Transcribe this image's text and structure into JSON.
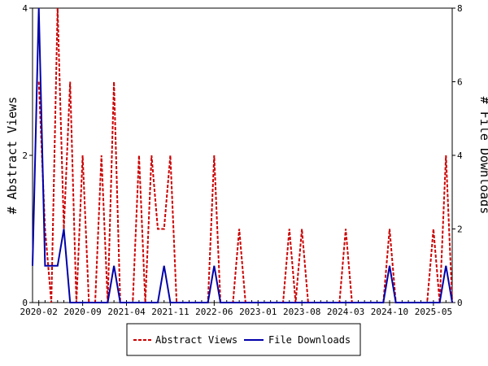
{
  "chart_data": {
    "type": "line",
    "x_ticks": [
      "2020-02",
      "2020-09",
      "2021-04",
      "2021-11",
      "2022-06",
      "2023-01",
      "2023-08",
      "2024-03",
      "2024-10",
      "2025-05"
    ],
    "ylabel_left": "# Abstract Views",
    "ylabel_right": "# File Downloads",
    "ylim_left": [
      0,
      4
    ],
    "ylim_right": [
      0,
      8
    ],
    "yticks_left": [
      "0",
      "2",
      "4"
    ],
    "yticks_right": [
      "0",
      "2",
      "4",
      "6",
      "8"
    ],
    "series": [
      {
        "name": "Abstract Views",
        "axis": "left",
        "color": "#cc0000",
        "style": "dashed",
        "points": [
          [
            "2020-02",
            3
          ],
          [
            "2020-03",
            1
          ],
          [
            "2020-04",
            0
          ],
          [
            "2020-05",
            4
          ],
          [
            "2020-06",
            1
          ],
          [
            "2020-07",
            3
          ],
          [
            "2020-08",
            0
          ],
          [
            "2020-09",
            2
          ],
          [
            "2020-10",
            0
          ],
          [
            "2020-11",
            0
          ],
          [
            "2020-12",
            2
          ],
          [
            "2021-01",
            0
          ],
          [
            "2021-02",
            3
          ],
          [
            "2021-03",
            0
          ],
          [
            "2021-04",
            0
          ],
          [
            "2021-05",
            0
          ],
          [
            "2021-06",
            2
          ],
          [
            "2021-07",
            0
          ],
          [
            "2021-08",
            2
          ],
          [
            "2021-09",
            1
          ],
          [
            "2021-10",
            1
          ],
          [
            "2021-11",
            2
          ],
          [
            "2021-12",
            0
          ],
          [
            "2022-01",
            0
          ],
          [
            "2022-02",
            0
          ],
          [
            "2022-03",
            0
          ],
          [
            "2022-04",
            0
          ],
          [
            "2022-05",
            0
          ],
          [
            "2022-06",
            2
          ],
          [
            "2022-07",
            0
          ],
          [
            "2022-08",
            0
          ],
          [
            "2022-09",
            0
          ],
          [
            "2022-10",
            1
          ],
          [
            "2022-11",
            0
          ],
          [
            "2022-12",
            0
          ],
          [
            "2023-01",
            0
          ],
          [
            "2023-02",
            0
          ],
          [
            "2023-03",
            0
          ],
          [
            "2023-04",
            0
          ],
          [
            "2023-05",
            0
          ],
          [
            "2023-06",
            1
          ],
          [
            "2023-07",
            0
          ],
          [
            "2023-08",
            1
          ],
          [
            "2023-09",
            0
          ],
          [
            "2023-10",
            0
          ],
          [
            "2023-11",
            0
          ],
          [
            "2023-12",
            0
          ],
          [
            "2024-01",
            0
          ],
          [
            "2024-02",
            0
          ],
          [
            "2024-03",
            1
          ],
          [
            "2024-04",
            0
          ],
          [
            "2024-05",
            0
          ],
          [
            "2024-06",
            0
          ],
          [
            "2024-07",
            0
          ],
          [
            "2024-08",
            0
          ],
          [
            "2024-09",
            0
          ],
          [
            "2024-10",
            1
          ],
          [
            "2024-11",
            0
          ],
          [
            "2024-12",
            0
          ],
          [
            "2025-01",
            0
          ],
          [
            "2025-02",
            0
          ],
          [
            "2025-03",
            0
          ],
          [
            "2025-04",
            0
          ],
          [
            "2025-05",
            1
          ],
          [
            "2025-06",
            0
          ],
          [
            "2025-07",
            2
          ],
          [
            "2025-08",
            0
          ]
        ]
      },
      {
        "name": "File Downloads",
        "axis": "right",
        "color": "#0000aa",
        "style": "solid",
        "points": [
          [
            "2020-01",
            1
          ],
          [
            "2020-02",
            8
          ],
          [
            "2020-03",
            1
          ],
          [
            "2020-04",
            1
          ],
          [
            "2020-05",
            1
          ],
          [
            "2020-06",
            2
          ],
          [
            "2020-07",
            0
          ],
          [
            "2020-08",
            0
          ],
          [
            "2020-09",
            0
          ],
          [
            "2020-10",
            0
          ],
          [
            "2020-11",
            0
          ],
          [
            "2020-12",
            0
          ],
          [
            "2021-01",
            0
          ],
          [
            "2021-02",
            1
          ],
          [
            "2021-03",
            0
          ],
          [
            "2021-04",
            0
          ],
          [
            "2021-05",
            0
          ],
          [
            "2021-06",
            0
          ],
          [
            "2021-07",
            0
          ],
          [
            "2021-08",
            0
          ],
          [
            "2021-09",
            0
          ],
          [
            "2021-10",
            1
          ],
          [
            "2021-11",
            0
          ],
          [
            "2021-12",
            0
          ],
          [
            "2022-01",
            0
          ],
          [
            "2022-02",
            0
          ],
          [
            "2022-03",
            0
          ],
          [
            "2022-04",
            0
          ],
          [
            "2022-05",
            0
          ],
          [
            "2022-06",
            1
          ],
          [
            "2022-07",
            0
          ],
          [
            "2022-08",
            0
          ],
          [
            "2022-09",
            0
          ],
          [
            "2022-10",
            0
          ],
          [
            "2022-11",
            0
          ],
          [
            "2022-12",
            0
          ],
          [
            "2023-01",
            0
          ],
          [
            "2023-02",
            0
          ],
          [
            "2023-03",
            0
          ],
          [
            "2023-04",
            0
          ],
          [
            "2023-05",
            0
          ],
          [
            "2023-06",
            0
          ],
          [
            "2023-07",
            0
          ],
          [
            "2023-08",
            0
          ],
          [
            "2023-09",
            0
          ],
          [
            "2023-10",
            0
          ],
          [
            "2023-11",
            0
          ],
          [
            "2023-12",
            0
          ],
          [
            "2024-01",
            0
          ],
          [
            "2024-02",
            0
          ],
          [
            "2024-03",
            0
          ],
          [
            "2024-04",
            0
          ],
          [
            "2024-05",
            0
          ],
          [
            "2024-06",
            0
          ],
          [
            "2024-07",
            0
          ],
          [
            "2024-08",
            0
          ],
          [
            "2024-09",
            0
          ],
          [
            "2024-10",
            1
          ],
          [
            "2024-11",
            0
          ],
          [
            "2024-12",
            0
          ],
          [
            "2025-01",
            0
          ],
          [
            "2025-02",
            0
          ],
          [
            "2025-03",
            0
          ],
          [
            "2025-04",
            0
          ],
          [
            "2025-05",
            0
          ],
          [
            "2025-06",
            0
          ],
          [
            "2025-07",
            1
          ],
          [
            "2025-08",
            0
          ]
        ]
      }
    ],
    "legend": {
      "position": "bottom-center"
    },
    "grid": false
  }
}
